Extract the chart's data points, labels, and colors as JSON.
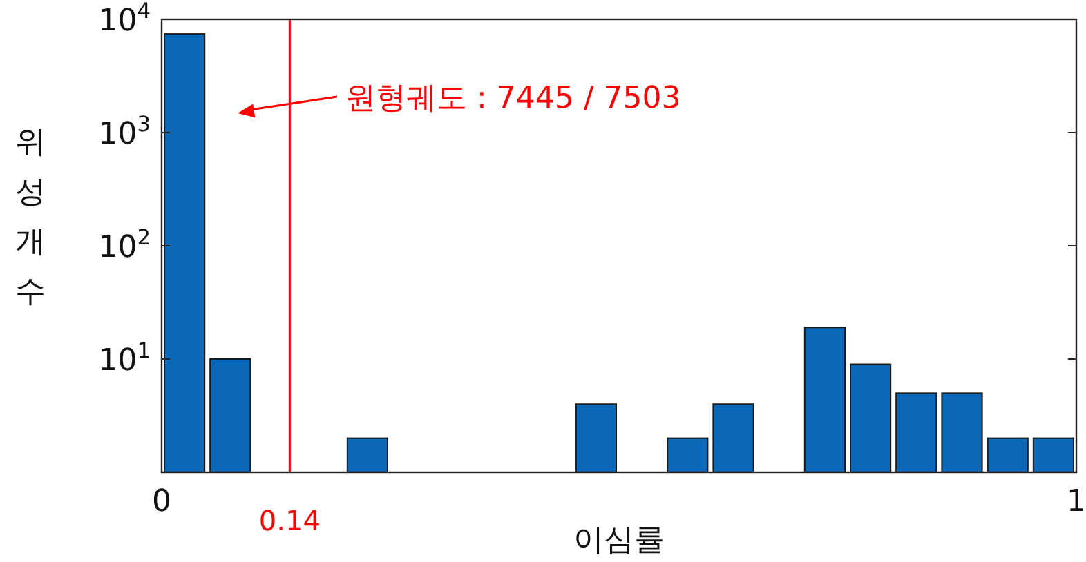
{
  "chart_data": {
    "type": "histogram",
    "xlabel": "이심률",
    "ylabel": "위성개수",
    "bins": [
      0,
      0.05,
      0.1,
      0.15,
      0.2,
      0.25,
      0.3,
      0.35,
      0.4,
      0.45,
      0.5,
      0.55,
      0.6,
      0.65,
      0.7,
      0.75,
      0.8,
      0.85,
      0.9,
      0.95,
      1
    ],
    "values": [
      7435,
      10,
      null,
      null,
      2,
      null,
      null,
      null,
      null,
      4,
      null,
      2,
      4,
      null,
      19,
      9,
      5,
      5,
      2,
      2
    ],
    "color": "#0b68b8",
    "log": "y",
    "grid": false,
    "xlim": [
      0,
      1
    ],
    "xticks": [
      0,
      1
    ],
    "ylim": [
      1,
      10000
    ],
    "yticks": [
      {
        "value": 1,
        "label": null
      },
      {
        "value": 10,
        "label": "10$^{1}$"
      },
      {
        "value": 100,
        "label": "10$^{2}$"
      },
      {
        "value": 1000,
        "label": "10$^{3}$"
      },
      {
        "value": 10000,
        "label": "10$^{4}$"
      }
    ],
    "ref_lines": [
      {
        "axis": "x",
        "value": 0.14,
        "label": "0.14",
        "color": "#ff0000"
      }
    ],
    "annotations": [
      "원형궤도 : 7445 / 7503"
    ]
  }
}
